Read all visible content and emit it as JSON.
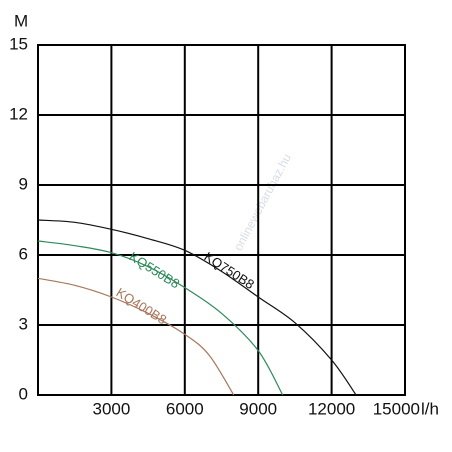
{
  "chart_data": {
    "type": "line",
    "y_label": "M",
    "x_label": "l/h",
    "watermark": "onlinewebaruhaz.hu",
    "xlim": [
      0,
      15000
    ],
    "ylim": [
      0,
      15
    ],
    "xticks": [
      3000,
      6000,
      9000,
      12000,
      15000
    ],
    "yticks": [
      0,
      3,
      6,
      9,
      12,
      15
    ],
    "grid": true,
    "series": [
      {
        "name": "KQ750B8",
        "color": "#111111",
        "x": [
          0,
          1500,
          3000,
          4500,
          6000,
          7500,
          9000,
          10500,
          12000,
          13000
        ],
        "values": [
          7.5,
          7.4,
          7.1,
          6.7,
          6.2,
          5.3,
          4.2,
          3.1,
          1.5,
          0
        ]
      },
      {
        "name": "KQ550B8",
        "color": "#2e8a5a",
        "x": [
          0,
          1500,
          3000,
          4500,
          6000,
          7500,
          9000,
          10000
        ],
        "values": [
          6.6,
          6.4,
          6.1,
          5.5,
          4.6,
          3.5,
          1.9,
          0
        ]
      },
      {
        "name": "KQ400B8",
        "color": "#a8765a",
        "x": [
          0,
          1500,
          3000,
          4500,
          6000,
          7000,
          8000
        ],
        "values": [
          5.0,
          4.7,
          4.2,
          3.5,
          2.6,
          1.7,
          0
        ]
      }
    ]
  }
}
